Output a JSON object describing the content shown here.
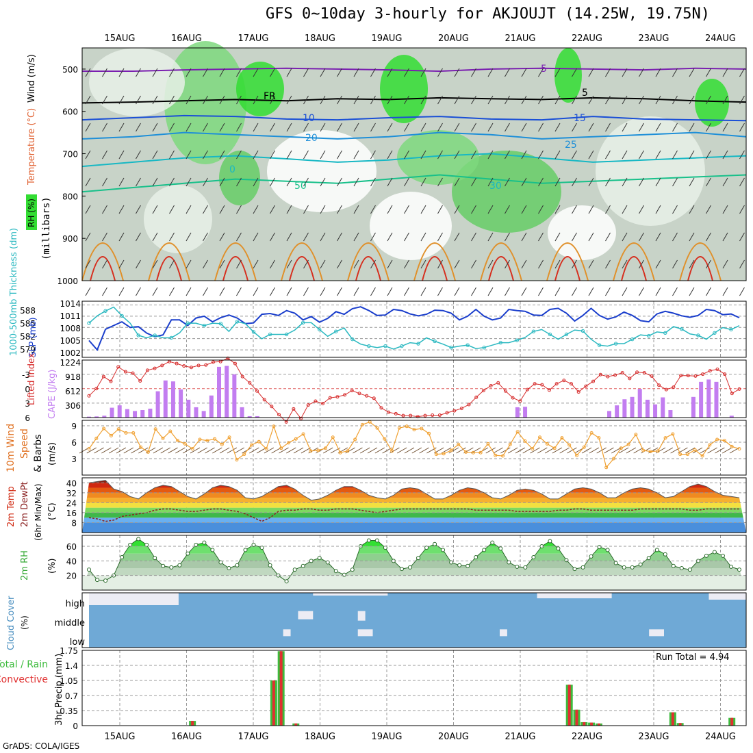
{
  "title": "GFS 0~10day 3-hourly for AKJOUJT (14.25W, 19.75N)",
  "credit": "GrADS: COLA/IGES",
  "dates": [
    "15AUG",
    "16AUG",
    "17AUG",
    "18AUG",
    "19AUG",
    "20AUG",
    "21AUG",
    "22AUG",
    "23AUG",
    "24AUG"
  ],
  "colors": {
    "grid": "#999999",
    "frame": "#000000",
    "cape": "#c27df0",
    "lifted": "#d62a2a",
    "slp": "#1a3ecc",
    "thick": "#29b8c0",
    "wind_speed": "#f0a030",
    "barb": "#6b4a2a",
    "rh2m": "#33a833",
    "cloud": "#6fa9d6",
    "rain": "#3dbb3d",
    "conv": "#e03030"
  },
  "chart_data": [
    {
      "panel": "upper_air",
      "type": "heatmap",
      "ylabels": [
        "Wind (m/s)",
        "Temperature (°C)",
        "RH (%)",
        "(millibars)"
      ],
      "yticks": [
        500,
        600,
        700,
        800,
        900,
        1000
      ],
      "ylim": [
        450,
        1000
      ],
      "contour_labels": [
        "5",
        "FR",
        "5",
        "10",
        "15",
        "20",
        "25",
        "0",
        "30",
        "50"
      ],
      "temperature_lines": [
        {
          "label": "5",
          "level": [
            505,
            505,
            502,
            500,
            498,
            500,
            502,
            505,
            500,
            498,
            500,
            502,
            498,
            500
          ]
        },
        {
          "label": "FR",
          "level": [
            580,
            578,
            575,
            572,
            575,
            570,
            572,
            568,
            570,
            572,
            568,
            570,
            575,
            578
          ]
        },
        {
          "label": "5",
          "level": [
            620,
            615,
            610,
            612,
            618,
            620,
            615,
            612,
            618,
            620,
            612,
            618,
            620,
            622
          ]
        },
        {
          "label": "10",
          "level": [
            665,
            660,
            650,
            655,
            660,
            665,
            660,
            650,
            655,
            665,
            660,
            655,
            650,
            660
          ]
        },
        {
          "label": "15",
          "level": [
            730,
            720,
            710,
            705,
            712,
            720,
            715,
            705,
            700,
            710,
            720,
            715,
            710,
            705
          ]
        },
        {
          "label": "20",
          "level": [
            790,
            780,
            770,
            760,
            765,
            770,
            760,
            750,
            760,
            770,
            765,
            760,
            755,
            750
          ]
        }
      ]
    },
    {
      "panel": "slp_thickness",
      "type": "line",
      "ylabel_left": "1000-500mb Thickness (dm)",
      "ylabel_right": "SLP (mb)",
      "yticks_left": [
        "588",
        "585",
        "582",
        "579"
      ],
      "yticks_right": [
        "1014",
        "1011",
        "1008",
        "1005",
        "1002"
      ],
      "series": [
        {
          "name": "SLP (mb)",
          "values": [
            1004.5,
            1002,
            1007.5,
            1008.5,
            1009.5,
            1008,
            1008.2,
            1006.5,
            1005.5,
            1006,
            1010,
            1010,
            1008.5,
            1010.5,
            1011,
            1009.5,
            1010.6,
            1011.3,
            1010.5,
            1009,
            1009.2,
            1011.5,
            1011.7,
            1011.2,
            1012.5,
            1011.8,
            1010,
            1010.9,
            1009.4,
            1010.4,
            1012.2,
            1011.5,
            1013,
            1013.5,
            1012.5,
            1011.2,
            1011.3,
            1012.8,
            1012.5,
            1011.6,
            1011.1,
            1011.5,
            1012.6,
            1012.5,
            1011.8,
            1010,
            1011,
            1012.8,
            1011,
            1010,
            1010.5,
            1012.8,
            1012.5,
            1012.3,
            1011.3,
            1011.2,
            1012.8,
            1013.1,
            1011.8,
            1009.7,
            1011.2,
            1013.1,
            1011.2,
            1010.2,
            1010.8,
            1012.1,
            1011.2,
            1009.8,
            1009.5,
            1011.6,
            1012.3,
            1011.8,
            1011.1,
            1010.7,
            1011.2,
            1012.8,
            1012.5,
            1011.4,
            1011.6,
            1010.6
          ]
        },
        {
          "name": "Thickness (dm)",
          "values": [
            585.5,
            587,
            588,
            588.8,
            587,
            585.5,
            583,
            582.5,
            583,
            582.5,
            582.5,
            583.5,
            585.5,
            585.5,
            585,
            585.5,
            585.4,
            583.8,
            585.8,
            585.4,
            583.7,
            582.3,
            583.2,
            583.2,
            583.2,
            584.1,
            585.6,
            585.6,
            584.2,
            582.8,
            583.8,
            584.5,
            582.2,
            581.2,
            580.8,
            580.5,
            580.8,
            580.2,
            580.8,
            581.5,
            581.3,
            582.5,
            581.8,
            581.2,
            580.5,
            580.8,
            581,
            580.3,
            580.5,
            581,
            581.5,
            581.5,
            582,
            582.6,
            583.8,
            584.2,
            583.2,
            582.2,
            583.2,
            584.1,
            583.9,
            582.2,
            581,
            580.8,
            581.3,
            581.3,
            582.2,
            583.1,
            582.9,
            583.7,
            583.5,
            584.8,
            584.3,
            583.3,
            583,
            582.2,
            583.5,
            584.6,
            584.2,
            585
          ]
        }
      ]
    },
    {
      "panel": "cape_li",
      "type": "bar",
      "ylabel_left": "Lifted Index",
      "ylabel_right": "CAPE (J/kg)",
      "yticks_left": [
        "-3",
        "0",
        "3",
        "6"
      ],
      "yticks_right": [
        "1224",
        "918",
        "612",
        "306"
      ],
      "series": [
        {
          "name": "CAPE (J/kg)",
          "values": [
            20,
            25,
            40,
            210,
            260,
            180,
            140,
            160,
            190,
            560,
            790,
            770,
            600,
            380,
            220,
            140,
            470,
            1080,
            1100,
            920,
            220,
            30,
            30,
            0,
            0,
            0,
            0,
            0,
            0,
            0,
            0,
            0,
            0,
            0,
            0,
            0,
            0,
            0,
            0,
            0,
            0,
            0,
            0,
            0,
            0,
            0,
            0,
            0,
            0,
            0,
            0,
            0,
            0,
            0,
            0,
            0,
            220,
            230,
            0,
            0,
            0,
            0,
            0,
            0,
            0,
            0,
            0,
            0,
            140,
            260,
            390,
            440,
            610,
            380,
            280,
            430,
            160,
            0,
            0,
            440,
            760,
            810,
            760,
            0,
            40,
            0
          ]
        },
        {
          "name": "Lifted Index",
          "values": [
            1.5,
            0,
            -2.5,
            -1.5,
            -4.5,
            -3.5,
            -3.2,
            -1.6,
            -3.8,
            -4.2,
            -4.8,
            -5.6,
            -5.2,
            -4.7,
            -4.4,
            -4.8,
            -4.9,
            -5.5,
            -5.6,
            -6.3,
            -5.2,
            -2.5,
            -1.2,
            0.5,
            2.3,
            3.7,
            5.4,
            6.9,
            4.2,
            6.2,
            3.4,
            2.6,
            3.1,
            1.9,
            1.7,
            1.3,
            0.4,
            1,
            1.5,
            2,
            4,
            4.9,
            5.2,
            5.6,
            5.6,
            5.8,
            5.6,
            5.5,
            5.5,
            5,
            4.6,
            4.1,
            3.3,
            1.8,
            0.4,
            -0.6,
            -1.2,
            0.5,
            1.9,
            2.6,
            0.2,
            -1,
            -0.8,
            0.3,
            -1,
            -1.7,
            -1,
            0.7,
            -0.5,
            -1.5,
            -2.9,
            -2.5,
            -2.8,
            -3.3,
            -2.1,
            -3.4,
            -3.3,
            -2.6,
            -0.7,
            0.2,
            -0.3,
            -2.7,
            -2.7,
            -2.6,
            -3,
            -3.7,
            -4,
            -3,
            1,
            0.1
          ]
        }
      ]
    },
    {
      "panel": "wind10m",
      "type": "line",
      "ylabel": "10m Wind Speed & Barbs (m/s)",
      "yticks": [
        "9",
        "6",
        "3"
      ],
      "ylim": [
        0,
        10
      ],
      "series": [
        {
          "name": "Speed",
          "values": [
            4.8,
            6.7,
            8.5,
            7.2,
            8.4,
            7.7,
            7.7,
            5.1,
            4.2,
            8.4,
            6.7,
            8,
            6.3,
            5.7,
            4.8,
            6.5,
            6.3,
            6.6,
            5.6,
            6.9,
            2.8,
            3.8,
            5.5,
            6.1,
            4.8,
            8.9,
            4.9,
            5.9,
            6.6,
            7.5,
            4.4,
            4.5,
            4.9,
            6.9,
            4.1,
            4.4,
            6.5,
            9.2,
            9.7,
            8.6,
            6.6,
            4.4,
            8.6,
            8.9,
            8.3,
            8.5,
            7.6,
            3.8,
            3.9,
            4.5,
            5.6,
            4.2,
            4.1,
            4.1,
            5.7,
            3.6,
            3.5,
            5.6,
            7.9,
            6.2,
            4.8,
            6.9,
            5.7,
            4.9,
            6.8,
            5.5,
            3.6,
            5.1,
            7.7,
            6.8,
            1.4,
            3,
            4.9,
            5.6,
            7.4,
            4.5,
            4.3,
            4.4,
            6.8,
            7.5,
            3.8,
            3.8,
            4.6,
            3.5,
            5.5,
            6.5,
            6.3,
            5.2,
            4.8
          ]
        }
      ]
    },
    {
      "panel": "temp2m",
      "type": "area",
      "ylabel": "2m Temp 2m DewPt (6hr Min/Max) (°C)",
      "yticks": [
        "40",
        "32",
        "24",
        "16",
        "8"
      ],
      "ylim": [
        0,
        44
      ],
      "series": [
        {
          "name": "2m Temp",
          "values": [
            40,
            41,
            42,
            35,
            33,
            29,
            27,
            32,
            36,
            38,
            37,
            33,
            29,
            27,
            31,
            36,
            38,
            37,
            34,
            28,
            27,
            29,
            33,
            37,
            38,
            35,
            30,
            26,
            27,
            30,
            34,
            37,
            37,
            34,
            30,
            28,
            27,
            30,
            35,
            36,
            35,
            31,
            27,
            27,
            30,
            34,
            36,
            35,
            32,
            28,
            27,
            30,
            34,
            35,
            34,
            31,
            27,
            27,
            31,
            35,
            36,
            35,
            32,
            28,
            28,
            32,
            35,
            36,
            35,
            32,
            28,
            29,
            33,
            37,
            39,
            37,
            33,
            30,
            29,
            28
          ]
        },
        {
          "name": "2m DewPt",
          "values": [
            12,
            11,
            9,
            10,
            13,
            14,
            15,
            16,
            18,
            19,
            19,
            18,
            17,
            17,
            18,
            19,
            19,
            18,
            17,
            15,
            12,
            9,
            12,
            17,
            18,
            18,
            19,
            19,
            18,
            18,
            19,
            19,
            19,
            18,
            17,
            16,
            17,
            18,
            19,
            19,
            19,
            19,
            19,
            19,
            19,
            19,
            19,
            18,
            18,
            18,
            18,
            18,
            17,
            17,
            17,
            17,
            17,
            18,
            18,
            19,
            19,
            18,
            18,
            18,
            18,
            18,
            18,
            19,
            19,
            19,
            19,
            19,
            19,
            18,
            18,
            19,
            19,
            19,
            19,
            19
          ]
        }
      ]
    },
    {
      "panel": "rh2m",
      "type": "area",
      "ylabel": "2m RH (%)",
      "yticks": [
        "60",
        "40",
        "20"
      ],
      "ylim": [
        0,
        75
      ],
      "series": [
        {
          "name": "2m RH",
          "values": [
            28,
            14,
            13,
            20,
            45,
            62,
            70,
            62,
            44,
            33,
            31,
            34,
            50,
            62,
            65,
            55,
            38,
            30,
            34,
            55,
            62,
            58,
            34,
            20,
            12,
            28,
            33,
            40,
            44,
            38,
            26,
            21,
            28,
            60,
            68,
            68,
            58,
            40,
            29,
            31,
            44,
            58,
            63,
            55,
            38,
            34,
            33,
            45,
            55,
            65,
            57,
            38,
            32,
            31,
            45,
            60,
            67,
            57,
            41,
            29,
            31,
            46,
            59,
            55,
            37,
            31,
            31,
            35,
            44,
            55,
            49,
            33,
            30,
            28,
            40,
            47,
            52,
            47,
            32,
            28
          ]
        }
      ]
    },
    {
      "panel": "cloud",
      "type": "heatmap",
      "ylabel": "Cloud Cover (%)",
      "rows": [
        "high",
        "middle",
        "low"
      ]
    },
    {
      "panel": "precip",
      "type": "bar",
      "ylabel": "3hr Precip (mm)",
      "legend": [
        "Total / Rain",
        "Convective"
      ],
      "yticks": [
        "1.75",
        "1.4",
        "1.05",
        "0.7",
        "0.35",
        "0"
      ],
      "ylim": [
        0,
        1.75
      ],
      "run_total": "Run Total = 4.94",
      "series": [
        {
          "name": "Total / Rain",
          "values": [
            0,
            0,
            0,
            0,
            0,
            0,
            0,
            0,
            0,
            0,
            0,
            0,
            0,
            0,
            0.11,
            0,
            0,
            0,
            0,
            0,
            0,
            0,
            0,
            0,
            0,
            1.05,
            1.73,
            0,
            0.05,
            0,
            0,
            0,
            0,
            0,
            0,
            0,
            0,
            0,
            0,
            0,
            0,
            0,
            0,
            0,
            0,
            0,
            0,
            0,
            0,
            0,
            0,
            0,
            0,
            0,
            0,
            0,
            0,
            0,
            0,
            0,
            0,
            0,
            0,
            0,
            0,
            0.95,
            0.37,
            0.08,
            0.07,
            0.05,
            0,
            0,
            0,
            0,
            0,
            0,
            0,
            0,
            0,
            0.31,
            0.06,
            0,
            0,
            0,
            0,
            0,
            0,
            0.18,
            0
          ]
        }
      ]
    }
  ]
}
